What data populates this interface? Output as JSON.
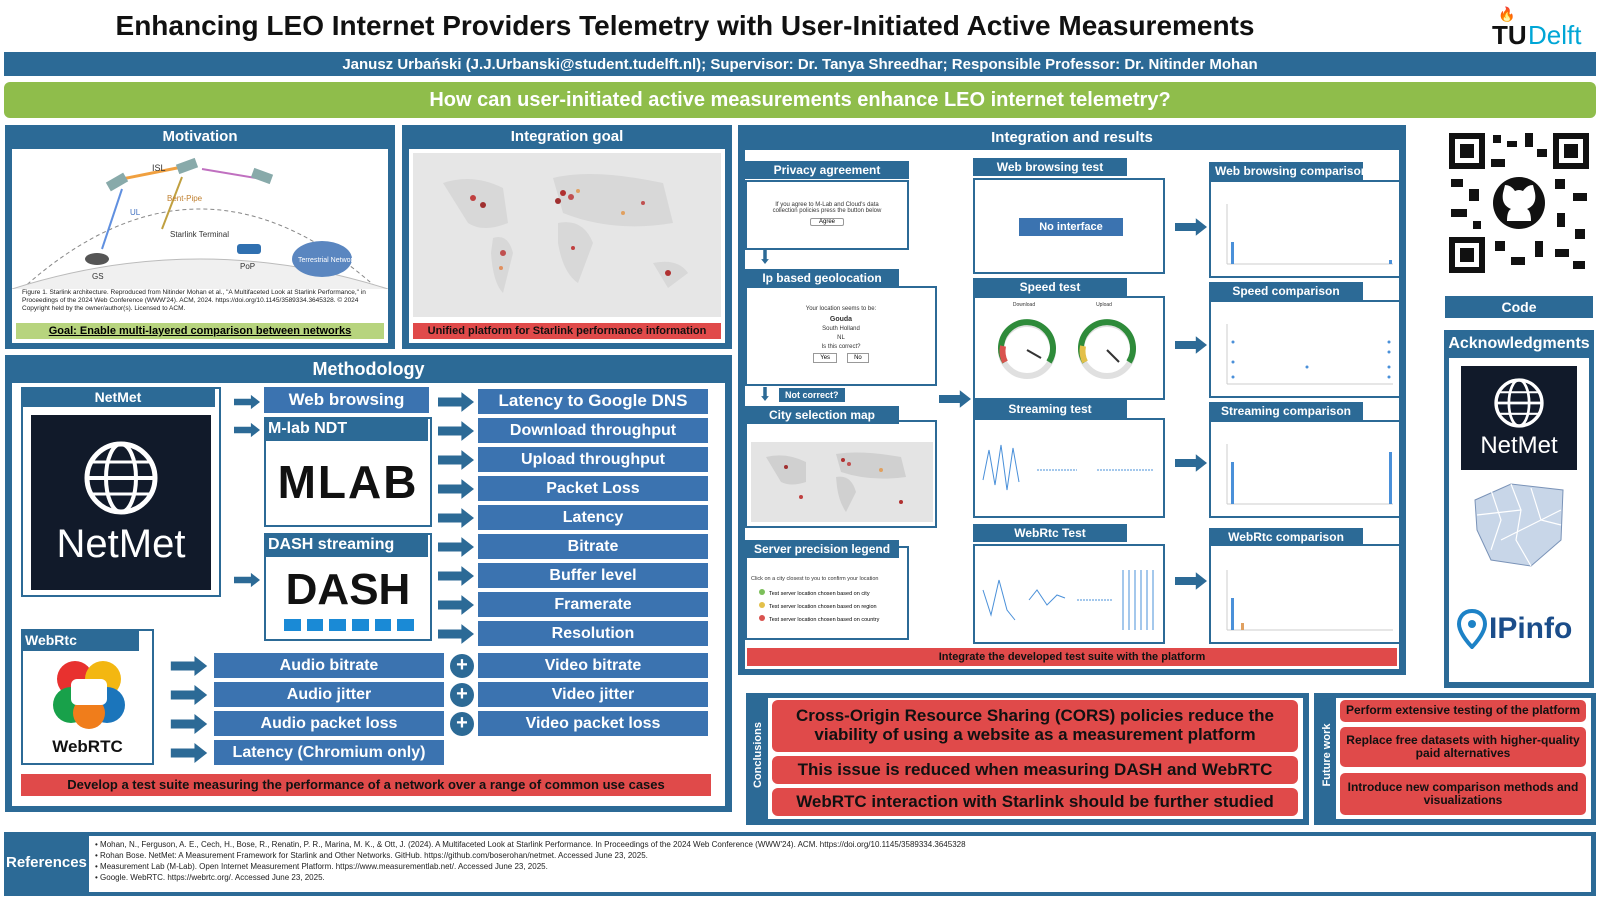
{
  "poster": {
    "title": "Enhancing LEO Internet Providers Telemetry with User-Initiated Active Measurements",
    "authors": "Janusz Urbański (J.J.Urbanski@student.tudelft.nl); Supervisor: Dr. Tanya Shreedhar; Responsible Professor: Dr. Nitinder Mohan",
    "question": "How can user-initiated active measurements enhance LEO internet telemetry?",
    "logo_tu": "TU",
    "logo_delft": "Delft"
  },
  "motivation": {
    "title": "Motivation",
    "diagram_labels": {
      "isl": "ISL",
      "bent_pipe": "Bent-Pipe",
      "ul": "UL",
      "starlink_terminal": "Starlink Terminal",
      "gs": "GS",
      "pop": "PoP",
      "terrestrial": "Terrestrial Network"
    },
    "caption": "Figure 1. Starlink architecture. Reproduced from Nitinder Mohan et al., \"A Multifaceted Look at Starlink Performance,\" in Proceedings of the 2024 Web Conference (WWW'24). ACM, 2024. https://doi.org/10.1145/3589334.3645328. © 2024 Copyright held by the owner/author(s). Licensed to ACM.",
    "goal": "Goal: Enable multi-layered comparison between networks"
  },
  "integration_goal": {
    "title": "Integration goal",
    "caption": "Unified platform for Starlink performance information"
  },
  "methodology": {
    "title": "Methodology",
    "netmet_label": "NetMet",
    "netmet_logo_text": "NetMet",
    "web_browsing": "Web browsing",
    "mlab_ndt": "M-lab NDT",
    "mlab_logo": "MLAB",
    "dash_streaming": "DASH streaming",
    "dash_logo": "DASH",
    "metrics": [
      "Latency to Google DNS",
      "Download throughput",
      "Upload throughput",
      "Packet Loss",
      "Latency",
      "Bitrate",
      "Buffer level",
      "Framerate",
      "Resolution"
    ],
    "webrtc_label": "WebRtc",
    "webrtc_logo_text": "WebRTC",
    "audio_metrics": [
      "Audio bitrate",
      "Audio jitter",
      "Audio packet loss",
      "Latency (Chromium only)"
    ],
    "video_metrics": [
      "Video bitrate",
      "Video jitter",
      "Video packet loss"
    ],
    "plus": "+",
    "footer": "Develop a test suite measuring the performance of a network over a range of common use cases"
  },
  "integration": {
    "title": "Integration and results",
    "privacy": {
      "title": "Privacy agreement",
      "text": "If you agree to M-Lab and Cloud's data collection policies press the button below",
      "button": "Agree"
    },
    "geo": {
      "title": "Ip based geolocation",
      "line1": "Your location seems to be:",
      "city": "Gouda",
      "region": "South Holland",
      "country": "NL",
      "question": "Is this correct?",
      "yes": "Yes",
      "no": "No"
    },
    "not_correct": "Not correct?",
    "city_map": "City selection map",
    "legend": {
      "title": "Server precision legend",
      "intro": "Click on a city closest to you to confirm your location",
      "items": [
        "Test server location chosen based on city",
        "Test server location chosen based on region",
        "Test server location chosen based on country"
      ],
      "colors": [
        "#7cbf5a",
        "#e3c04a",
        "#d9534f"
      ]
    },
    "web_test": {
      "title": "Web browsing test",
      "no_interface": "No interface"
    },
    "speed_test": {
      "title": "Speed test",
      "gauge1": "Download",
      "gauge2": "Upload"
    },
    "streaming_test": {
      "title": "Streaming test"
    },
    "webrtc_test": {
      "title": "WebRtc Test"
    },
    "web_cmp": "Web browsing comparison",
    "speed_cmp": "Speed comparison",
    "stream_cmp": "Streaming comparison",
    "webrtc_cmp": "WebRtc comparison",
    "footer": "Integrate the developed test suite with the platform"
  },
  "sidebar": {
    "code": "Code",
    "ack": "Acknowledgments",
    "netmet_logo": "NetMet",
    "ipinfo": "IPinfo"
  },
  "conclusions": {
    "label": "Conclusions",
    "items": [
      "Cross-Origin Resource Sharing (CORS) policies reduce the viability of using a website as a measurement platform",
      "This issue is reduced when measuring DASH and WebRTC",
      "WebRTC interaction with Starlink should be further studied"
    ]
  },
  "future": {
    "label": "Future work",
    "items": [
      "Perform extensive testing of the platform",
      "Replace free datasets with higher-quality paid alternatives",
      "Introduce new comparison methods and visualizations"
    ]
  },
  "references": {
    "label": "References",
    "items": [
      "Mohan, N., Ferguson, A. E., Cech, H., Bose, R., Renatin, P. R., Marina, M. K., & Ott, J. (2024). A Multifaceted Look at Starlink Performance. In Proceedings of the 2024 Web Conference (WWW'24). ACM. https://doi.org/10.1145/3589334.3645328",
      "Rohan Bose. NetMet: A Measurement Framework for Starlink and Other Networks. GitHub. https://github.com/boserohan/netmet. Accessed June 23, 2025.",
      "Measurement Lab (M-Lab). Open Internet Measurement Platform. https://www.measurementlab.net/. Accessed June 23, 2025.",
      "Google. WebRTC. https://webrtc.org/. Accessed June 23, 2025."
    ]
  }
}
